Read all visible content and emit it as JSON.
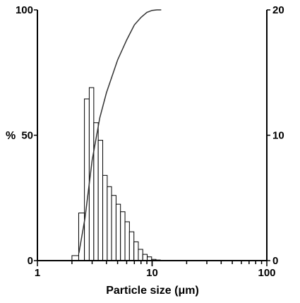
{
  "chart_data": {
    "type": "bar",
    "x_scale": "log",
    "xlim": [
      1,
      100
    ],
    "xlabel": "Particle size (μm)",
    "x_tick_labels": [
      "1",
      "10",
      "100"
    ],
    "left_axis": {
      "label": "%",
      "ylim": [
        0,
        100
      ],
      "tick_labels": [
        "0",
        "50",
        "100"
      ]
    },
    "right_axis": {
      "ylim": [
        0,
        20
      ],
      "tick_labels": [
        "0",
        "10",
        "20"
      ]
    },
    "histogram": {
      "axis": "right",
      "bin_edges": [
        2.0,
        2.29,
        2.57,
        2.83,
        3.1,
        3.39,
        3.71,
        4.06,
        4.43,
        4.85,
        5.3,
        5.8,
        6.34,
        6.94,
        7.58,
        8.29,
        9.06,
        9.9,
        10.8,
        11.8
      ],
      "values": [
        0.4,
        3.8,
        12.9,
        13.8,
        11.0,
        9.6,
        6.8,
        5.9,
        5.2,
        4.5,
        3.9,
        3.1,
        2.3,
        1.5,
        0.9,
        0.5,
        0.3,
        0.1,
        0.05
      ]
    },
    "cumulative": {
      "axis": "left",
      "x": [
        2.3,
        2.6,
        3.0,
        3.5,
        4.0,
        5.0,
        6.0,
        7.0,
        8.0,
        9.0,
        10.0,
        11.0,
        12.0
      ],
      "y": [
        3,
        17,
        40,
        57,
        67,
        80,
        88,
        94,
        97,
        99,
        99.8,
        100,
        100
      ]
    },
    "grid": false
  }
}
